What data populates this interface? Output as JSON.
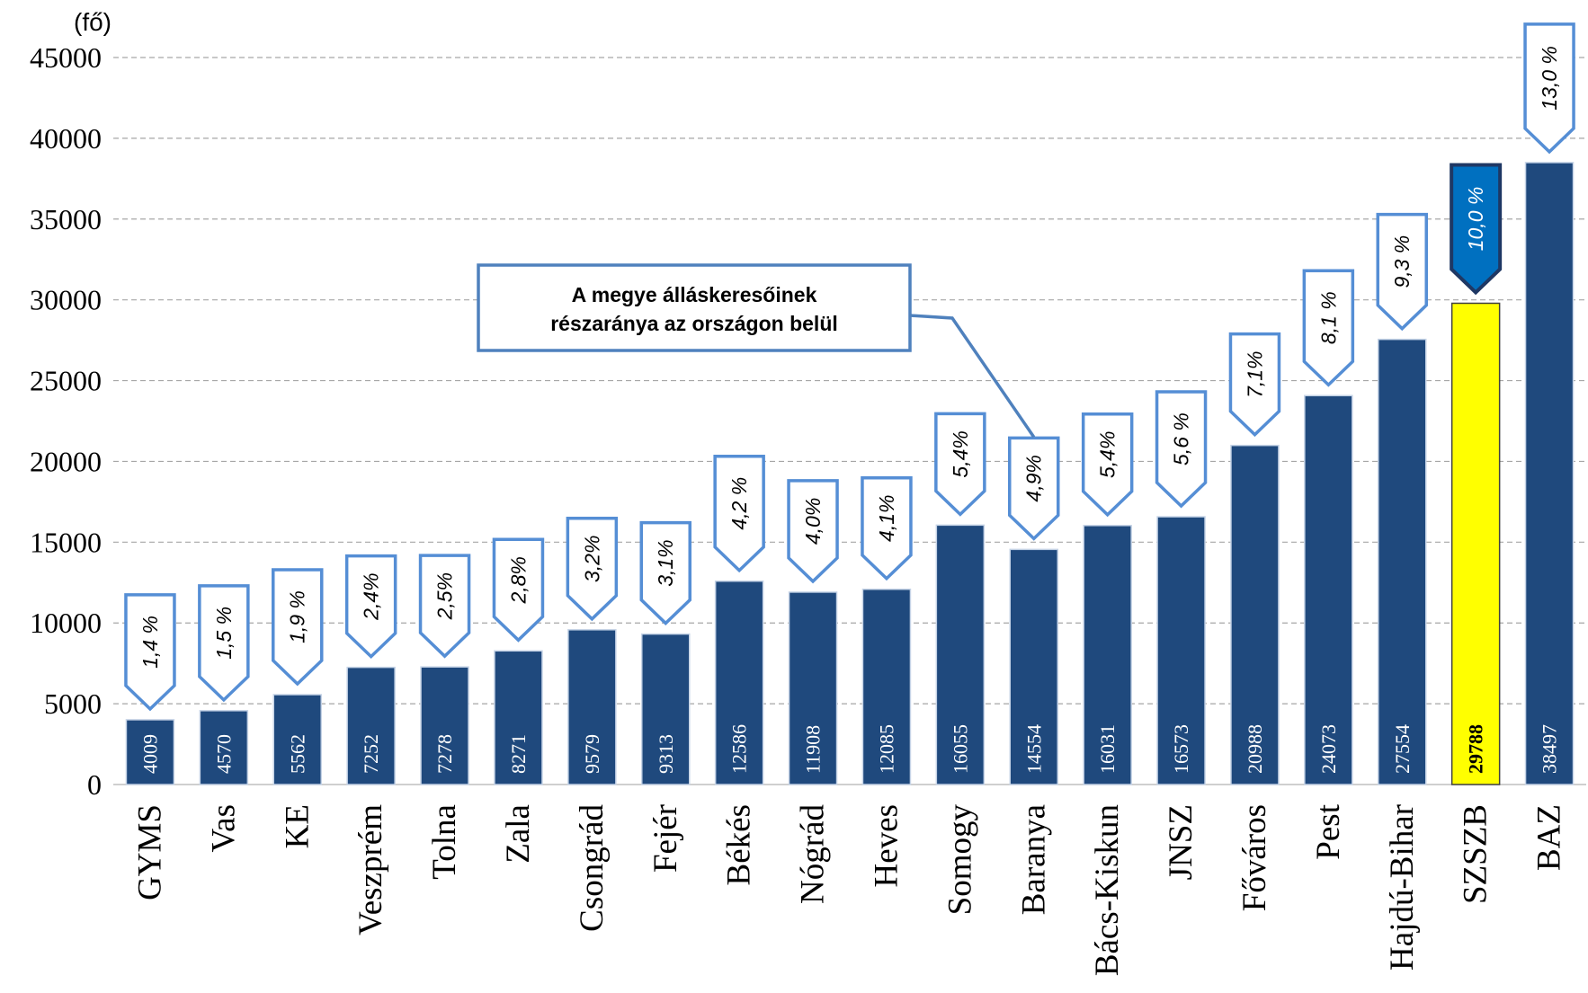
{
  "chart_data": {
    "type": "bar",
    "categories": [
      "GYMS",
      "Vas",
      "KE",
      "Veszprém",
      "Tolna",
      "Zala",
      "Csongrád",
      "Fejér",
      "Békés",
      "Nógrád",
      "Heves",
      "Somogy",
      "Baranya",
      "Bács-Kiskun",
      "JNSZ",
      "Főváros",
      "Pest",
      "Hajdú-Bihar",
      "SZSZB",
      "BAZ"
    ],
    "values": [
      4009,
      4570,
      5562,
      7252,
      7278,
      8271,
      9579,
      9313,
      12586,
      11908,
      12085,
      16055,
      14554,
      16031,
      16573,
      20988,
      24073,
      27554,
      29788,
      38497
    ],
    "share_labels": [
      "1,4 %",
      "1,5 %",
      "1,9 %",
      "2,4%",
      "2,5%",
      "2,8%",
      "3,2%",
      "3,1%",
      "4,2 %",
      "4,0%",
      "4,1%",
      "5,4%",
      "4,9%",
      "5,4%",
      "5,6 %",
      "7,1%",
      "8,1 %",
      "9,3 %",
      "10,0 %",
      "13,0 %"
    ],
    "highlight_index": 18,
    "ylabel": "(fő)",
    "xlabel": "",
    "ylim": [
      0,
      45000
    ],
    "yticks": [
      0,
      5000,
      10000,
      15000,
      20000,
      25000,
      30000,
      35000,
      40000,
      45000
    ],
    "grid": true,
    "annotation": [
      "A megye álláskeresőinek",
      "részaránya az országon belül"
    ],
    "colors": {
      "bar": "#1F497D",
      "bar_outline": "#C5D3E6",
      "highlight_bar": "#FFFF00",
      "highlight_bar_outline": "#404040",
      "callout_border": "#558ED5",
      "callout_fill": "#FFFFFF",
      "highlight_callout_fill": "#0070C0",
      "highlight_callout_border": "#1F3864",
      "grid": "#A6A6A6"
    }
  }
}
